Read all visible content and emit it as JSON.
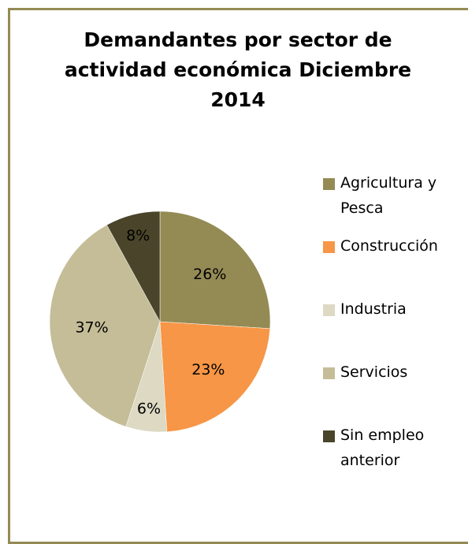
{
  "chart_data": {
    "type": "pie",
    "title": "Demandantes por sector de actividad económica Diciembre 2014",
    "categories": [
      "Agricultura y Pesca",
      "Construcción",
      "Industria",
      "Servicios",
      "Sin empleo anterior"
    ],
    "values": [
      26,
      23,
      6,
      37,
      8
    ],
    "value_labels": [
      "26%",
      "23%",
      "6%",
      "37%",
      "8%"
    ],
    "colors": [
      "#948a54",
      "#f79646",
      "#ddd9c3",
      "#c4bd97",
      "#4a452a"
    ],
    "legend": "right"
  }
}
